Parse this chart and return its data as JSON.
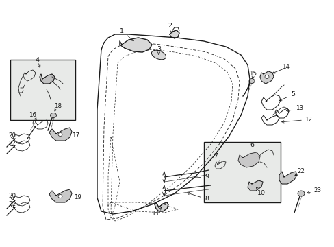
{
  "bg_color": "#ffffff",
  "line_color": "#1a1a1a",
  "box_fill": "#e8eae8",
  "fig_width": 4.89,
  "fig_height": 3.6,
  "dpi": 100
}
